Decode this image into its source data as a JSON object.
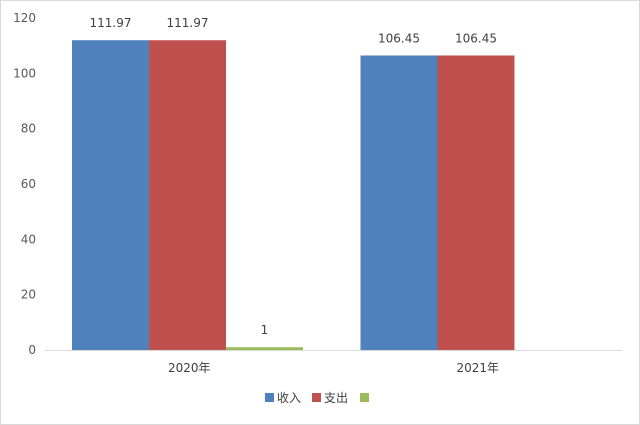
{
  "chart_data": {
    "type": "bar",
    "title": "",
    "xlabel": "",
    "ylabel": "",
    "categories": [
      "2020年",
      "2021年"
    ],
    "series": [
      {
        "name": "收入",
        "color": "#4f81bd",
        "values": [
          111.97,
          106.45
        ]
      },
      {
        "name": "支出",
        "color": "#c0504d",
        "values": [
          111.97,
          106.45
        ]
      },
      {
        "name": "",
        "color": "#9bbb59",
        "values": [
          1,
          null
        ]
      }
    ],
    "data_labels": [
      [
        "111.97",
        "106.45"
      ],
      [
        "111.97",
        "106.45"
      ],
      [
        "1",
        ""
      ]
    ],
    "ylim": [
      0,
      120
    ],
    "yticks": [
      "0",
      "20",
      "40",
      "60",
      "80",
      "100",
      "120"
    ],
    "grid": false,
    "legend_position": "bottom"
  }
}
